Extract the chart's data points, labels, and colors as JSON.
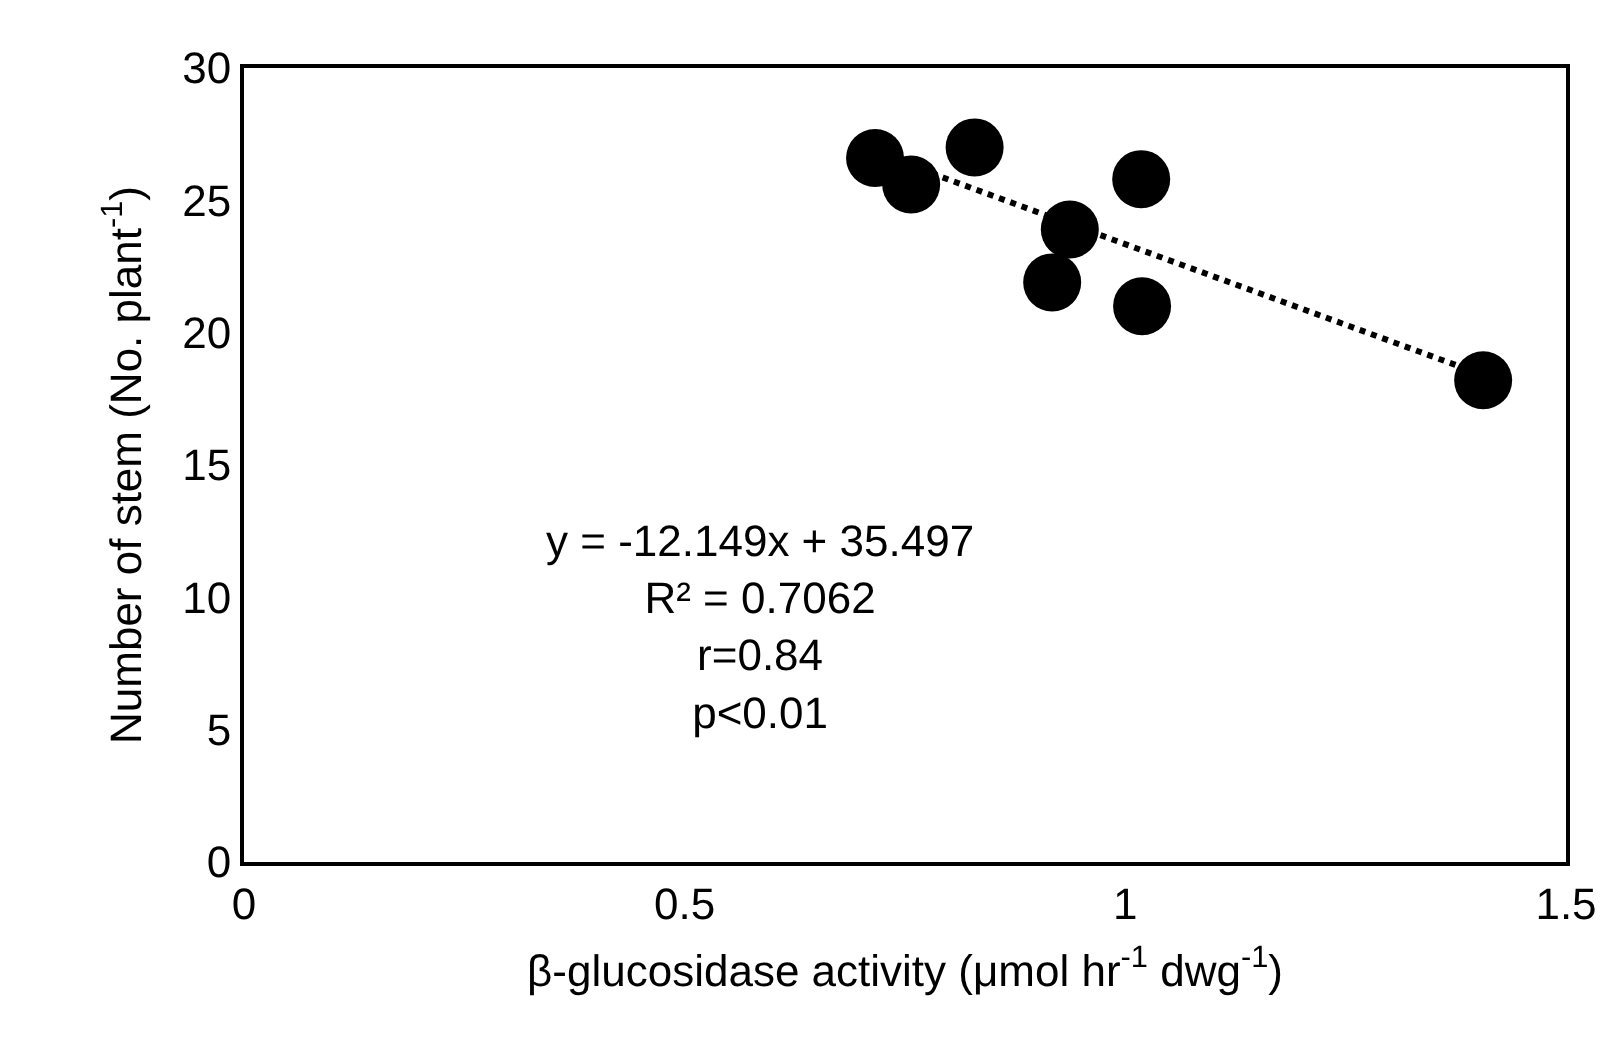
{
  "chart_data": {
    "type": "scatter",
    "xlabel": "β-glucosidase activity (μmol hr$^{-1}$ dwg$^{-1}$)",
    "ylabel": "Number of stem (No. plant$^{-1}$)",
    "series": [
      {
        "color": "#000000",
        "marker": "circle",
        "x": [
          0.716,
          0.757,
          0.829,
          0.937,
          0.917,
          1.018,
          1.019,
          1.406
        ],
        "values": [
          26.6,
          25.6,
          27.0,
          23.9,
          21.9,
          25.8,
          21.0,
          18.2
        ]
      },
      {
        "type": "line",
        "color": "#000000",
        "marker": "none",
        "line_style": "dotted",
        "x": [
          0.716,
          1.406
        ],
        "values": [
          26.8,
          18.4
        ]
      }
    ],
    "annotations": [
      "y = -12.149x + 35.497",
      "R² = 0.7062",
      "r=0.84",
      "p<0.01"
    ],
    "xlim": [
      0,
      1.5
    ],
    "xticks": [
      0,
      0.5,
      1,
      1.5
    ],
    "ylim": [
      0,
      30
    ],
    "yticks": [
      0,
      5,
      10,
      15,
      20,
      25,
      30
    ],
    "grid": false
  }
}
